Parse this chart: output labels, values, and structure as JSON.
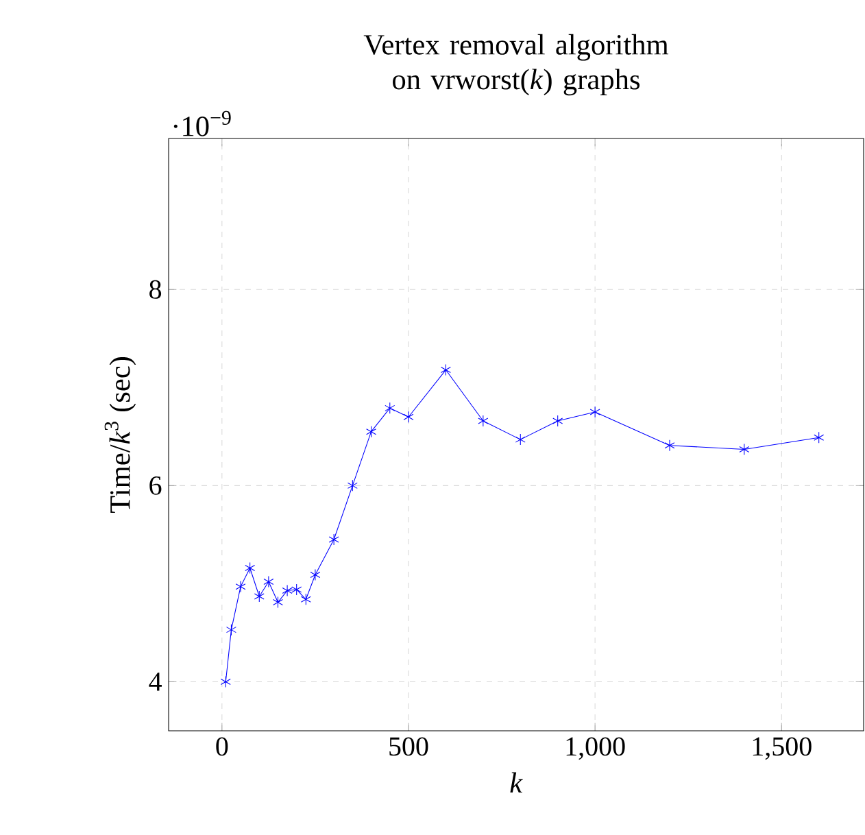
{
  "chart_data": {
    "type": "line",
    "title": "Vertex removal algorithm on vrworst(*k*) graphs",
    "xlabel": "*k*",
    "ylabel": "Time/*k*$^{3}$ (sec)",
    "annotations": [
      "·10$^{−9}$"
    ],
    "x": [
      10,
      25,
      50,
      75,
      100,
      125,
      150,
      175,
      200,
      225,
      250,
      300,
      350,
      400,
      450,
      500,
      600,
      700,
      800,
      900,
      1000,
      1200,
      1400,
      1600
    ],
    "series": [
      {
        "color": "#0000ff",
        "values": [
          4.0,
          4.53,
          4.97,
          5.16,
          4.87,
          5.02,
          4.81,
          4.93,
          4.94,
          4.84,
          5.09,
          5.45,
          6.0,
          6.55,
          6.79,
          6.7,
          7.18,
          6.66,
          6.47,
          6.66,
          6.75,
          6.41,
          6.37,
          6.49
        ]
      }
    ],
    "xlim": [
      -143,
      1720
    ],
    "ylim": [
      3.5,
      9.54
    ],
    "xticks": [
      0,
      500,
      {
        "value": 1000,
        "label": "1,000"
      },
      {
        "value": 1500,
        "label": "1,500"
      }
    ],
    "yticks": [
      4,
      6,
      8
    ],
    "grid": true,
    "marker": "cross",
    "line_style": "solid"
  }
}
